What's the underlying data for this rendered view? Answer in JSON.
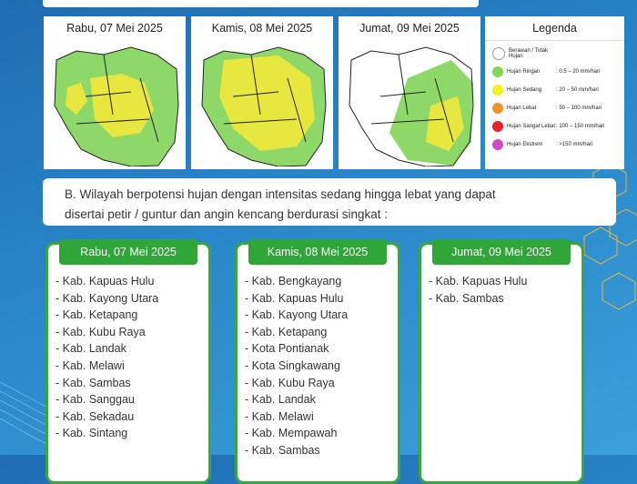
{
  "maps": [
    {
      "date": "Rabu, 07 Mei 2025"
    },
    {
      "date": "Kamis, 08 Mei 2025"
    },
    {
      "date": "Jumat, 09 Mei 2025"
    }
  ],
  "legend": {
    "title": "Legenda",
    "items": [
      {
        "label": "Berawan / Tidak Hujan",
        "range": "",
        "color": "#ffffff"
      },
      {
        "label": "Hujan Ringan",
        "range": ": 0.5 – 20 mm/hari",
        "color": "#7ed957"
      },
      {
        "label": "Hujan Sedang",
        "range": ": 20 – 50 mm/hari",
        "color": "#f2f220"
      },
      {
        "label": "Hujan Lebat",
        "range": ": 50 – 100 mm/hari",
        "color": "#f0922b"
      },
      {
        "label": "Hujan Sangat Lebat",
        "range": ": 100 – 150 mm/hari",
        "color": "#e8202a"
      },
      {
        "label": "Hujan Ekstrem",
        "range": ": >150 mm/hari",
        "color": "#d24bc8"
      }
    ]
  },
  "note": {
    "line1": "B. Wilayah berpotensi hujan dengan intensitas sedang hingga lebat yang dapat",
    "line2": "disertai petir / guntur dan angin kencang berdurasi singkat :"
  },
  "lists": [
    {
      "title": "Rabu, 07 Mei 2025",
      "items": [
        "- Kab. Kapuas Hulu",
        "- Kab. Kayong Utara",
        "- Kab. Ketapang",
        "- Kab. Kubu Raya",
        "- Kab. Landak",
        "- Kab. Melawi",
        "- Kab. Sambas",
        "- Kab. Sanggau",
        "- Kab. Sekadau",
        "- Kab. Sintang"
      ]
    },
    {
      "title": "Kamis, 08 Mei 2025",
      "items": [
        "- Kab. Bengkayang",
        "- Kab. Kapuas Hulu",
        "- Kab. Kayong Utara",
        "- Kab. Ketapang",
        "- Kota Pontianak",
        "- Kota Singkawang",
        "- Kab. Kubu Raya",
        "- Kab. Landak",
        "- Kab. Melawi",
        "- Kab. Mempawah",
        "- Kab. Sambas"
      ]
    },
    {
      "title": "Jumat, 09 Mei 2025",
      "items": [
        "- Kab. Kapuas Hulu",
        "- Kab. Sambas"
      ]
    }
  ]
}
